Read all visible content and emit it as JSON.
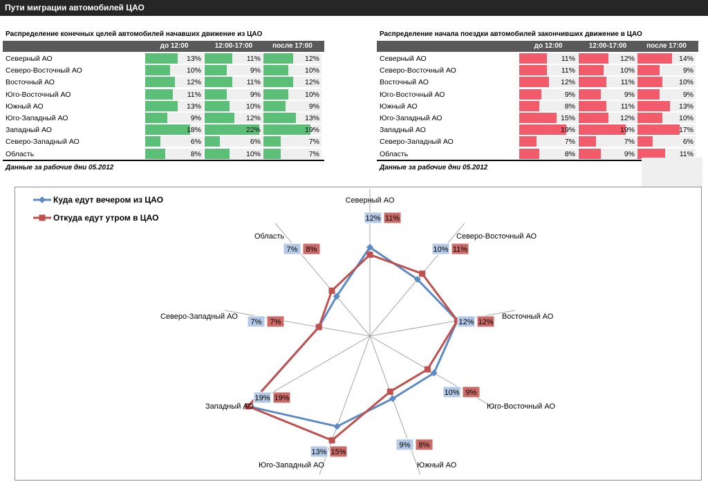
{
  "page_title": "Пути миграции автомобилей ЦАО",
  "tables": [
    {
      "title": "Распределение конечных целей автомобилей начавших движение из ЦАО",
      "columns": [
        "до 12:00",
        "12:00-17:00",
        "после 17:00"
      ],
      "bar_color": "#5cbf78",
      "rows": [
        {
          "label": "Северный АО",
          "values": [
            "13%",
            "11%",
            "12%"
          ]
        },
        {
          "label": "Северо-Восточный АО",
          "values": [
            "10%",
            "9%",
            "10%"
          ]
        },
        {
          "label": "Восточный АО",
          "values": [
            "12%",
            "11%",
            "12%"
          ]
        },
        {
          "label": "Юго-Восточный АО",
          "values": [
            "11%",
            "9%",
            "10%"
          ]
        },
        {
          "label": "Южный АО",
          "values": [
            "13%",
            "10%",
            "9%"
          ]
        },
        {
          "label": "Юго-Западный АО",
          "values": [
            "9%",
            "12%",
            "13%"
          ]
        },
        {
          "label": "Западный АО",
          "values": [
            "18%",
            "22%",
            "19%"
          ]
        },
        {
          "label": "Северо-Западный АО",
          "values": [
            "6%",
            "6%",
            "7%"
          ]
        },
        {
          "label": "Область",
          "values": [
            "8%",
            "10%",
            "7%"
          ]
        }
      ],
      "note": "Данные за рабочие дни 05.2012"
    },
    {
      "title": "Распределение начала поездки автомобилей закончивших движение в ЦАО",
      "columns": [
        "до 12:00",
        "12:00-17:00",
        "после 17:00"
      ],
      "bar_color": "#f25c6a",
      "rows": [
        {
          "label": "Северный АО",
          "values": [
            "11%",
            "12%",
            "14%"
          ]
        },
        {
          "label": "Северо-Восточный АО",
          "values": [
            "11%",
            "10%",
            "9%"
          ]
        },
        {
          "label": "Восточный АО",
          "values": [
            "12%",
            "11%",
            "10%"
          ]
        },
        {
          "label": "Юго-Восточный АО",
          "values": [
            "9%",
            "9%",
            "9%"
          ]
        },
        {
          "label": "Южный АО",
          "values": [
            "8%",
            "11%",
            "13%"
          ]
        },
        {
          "label": "Юго-Западный АО",
          "values": [
            "15%",
            "12%",
            "10%"
          ]
        },
        {
          "label": "Западный АО",
          "values": [
            "19%",
            "19%",
            "17%"
          ]
        },
        {
          "label": "Северо-Западный АО",
          "values": [
            "7%",
            "7%",
            "6%"
          ]
        },
        {
          "label": "Область",
          "values": [
            "8%",
            "9%",
            "11%"
          ]
        }
      ],
      "note": "Данные за рабочие дни 05.2012"
    }
  ],
  "chart_data": {
    "type": "radar",
    "categories": [
      "Северный АО",
      "Северо-Восточный АО",
      "Восточный АО",
      "Юго-Восточный АО",
      "Южный АО",
      "Юго-Западный АО",
      "Западный АО",
      "Северо-Западный АО",
      "Область"
    ],
    "series": [
      {
        "name": "Куда едут вечером из ЦАО",
        "values": [
          12,
          10,
          12,
          10,
          9,
          13,
          19,
          7,
          7
        ],
        "labels": [
          "12%",
          "10%",
          "12%",
          "10%",
          "9%",
          "13%",
          "19%",
          "7%",
          "7%"
        ],
        "color": "#5b8ac4",
        "label_bg": "#b4c9e6"
      },
      {
        "name": "Откуда едут утром в ЦАО",
        "values": [
          11,
          11,
          12,
          9,
          8,
          15,
          19,
          7,
          8
        ],
        "labels": [
          "11%",
          "11%",
          "12%",
          "9%",
          "8%",
          "15%",
          "19%",
          "7%",
          "8%"
        ],
        "color": "#c0504d",
        "label_bg": "#cc6b67"
      }
    ],
    "rmax": 20,
    "legend": "top-left",
    "grid": "radial spokes"
  }
}
